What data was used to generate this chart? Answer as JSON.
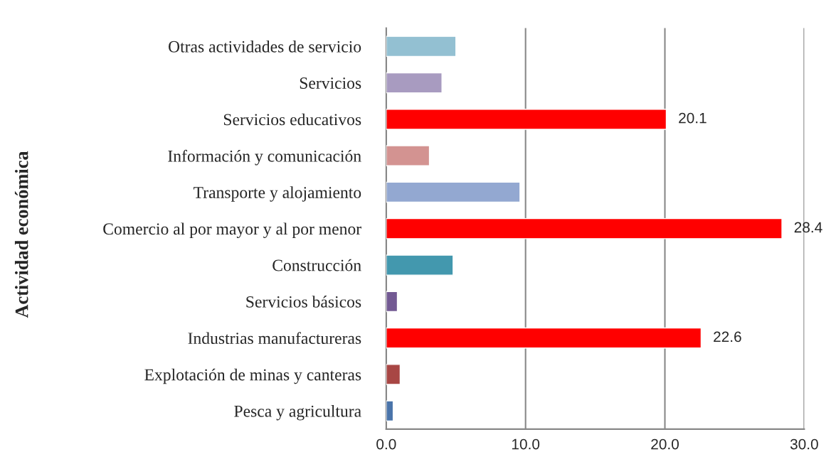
{
  "chart_data": {
    "type": "bar",
    "orientation": "horizontal",
    "ylabel": "Actividad económica",
    "categories": [
      "Otras actividades de servicio",
      "Servicios",
      "Servicios educativos",
      "Información y comunicación",
      "Transporte y alojamiento",
      "Comercio al por mayor y al por menor",
      "Construcción",
      "Servicios básicos",
      "Industrias manufactureras",
      "Explotación de minas y canteras",
      "Pesca y agricultura"
    ],
    "values": [
      5.0,
      4.0,
      20.1,
      3.1,
      9.6,
      28.4,
      4.8,
      0.8,
      22.6,
      1.0,
      0.5
    ],
    "value_labels": [
      null,
      null,
      "20.1",
      null,
      null,
      "28.4",
      null,
      null,
      "22.6",
      null,
      null
    ],
    "colors": [
      "#93c0d2",
      "#a89bc0",
      "#ff0000",
      "#d39391",
      "#93a8d1",
      "#ff0000",
      "#4398ae",
      "#735a93",
      "#ff0000",
      "#a84644",
      "#4a74aa"
    ],
    "xlim": [
      0,
      30
    ],
    "xticks": [
      {
        "value": 0,
        "label": "0.0"
      },
      {
        "value": 10,
        "label": "10.0"
      },
      {
        "value": 20,
        "label": "20.0"
      },
      {
        "value": 30,
        "label": "30.0"
      }
    ],
    "grid": "x",
    "legend": false
  }
}
